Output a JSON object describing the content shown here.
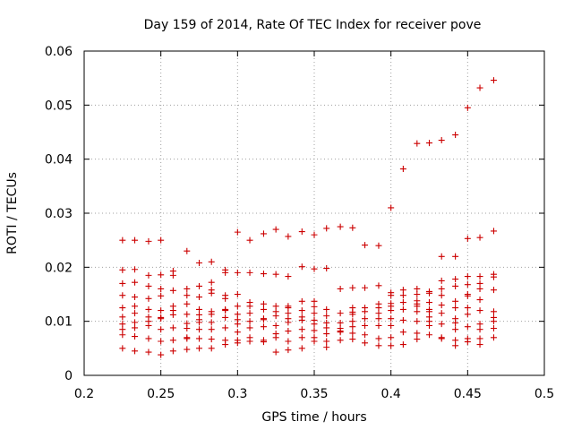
{
  "chart_data": {
    "type": "scatter",
    "title": "Day 159 of 2014, Rate Of TEC Index for receiver pove",
    "xlabel": "GPS time / hours",
    "ylabel": "ROTI / TECUs",
    "xlim": [
      0.2,
      0.5
    ],
    "ylim": [
      0,
      0.06
    ],
    "xticks": [
      0.2,
      0.25,
      0.3,
      0.35,
      0.4,
      0.45,
      0.5
    ],
    "xtick_labels": [
      "0.2",
      "0.25",
      "0.3",
      "0.35",
      "0.4",
      "0.45",
      "0.5"
    ],
    "yticks": [
      0,
      0.01,
      0.02,
      0.03,
      0.04,
      0.05,
      0.06
    ],
    "ytick_labels": [
      "0",
      "0.01",
      "0.02",
      "0.03",
      "0.04",
      "0.05",
      "0.06"
    ],
    "grid": true,
    "marker": "plus",
    "marker_color": "#cc0000",
    "series": [
      {
        "name": "ROTI",
        "points": [
          [
            0.225,
            0.025
          ],
          [
            0.225,
            0.0195
          ],
          [
            0.225,
            0.017
          ],
          [
            0.225,
            0.0148
          ],
          [
            0.225,
            0.0125
          ],
          [
            0.225,
            0.0108
          ],
          [
            0.225,
            0.0095
          ],
          [
            0.225,
            0.0085
          ],
          [
            0.225,
            0.0075
          ],
          [
            0.225,
            0.005
          ],
          [
            0.233,
            0.025
          ],
          [
            0.233,
            0.0196
          ],
          [
            0.233,
            0.0172
          ],
          [
            0.233,
            0.0145
          ],
          [
            0.233,
            0.0128
          ],
          [
            0.233,
            0.0115
          ],
          [
            0.233,
            0.0098
          ],
          [
            0.233,
            0.0088
          ],
          [
            0.233,
            0.0072
          ],
          [
            0.233,
            0.0045
          ],
          [
            0.242,
            0.0248
          ],
          [
            0.242,
            0.0185
          ],
          [
            0.242,
            0.0165
          ],
          [
            0.242,
            0.0142
          ],
          [
            0.242,
            0.0122
          ],
          [
            0.242,
            0.0108
          ],
          [
            0.242,
            0.01
          ],
          [
            0.242,
            0.0092
          ],
          [
            0.242,
            0.0068
          ],
          [
            0.242,
            0.0043
          ],
          [
            0.25,
            0.025
          ],
          [
            0.25,
            0.0186
          ],
          [
            0.25,
            0.016
          ],
          [
            0.25,
            0.0147
          ],
          [
            0.25,
            0.012
          ],
          [
            0.25,
            0.0107
          ],
          [
            0.25,
            0.0105
          ],
          [
            0.25,
            0.0085
          ],
          [
            0.25,
            0.0063
          ],
          [
            0.25,
            0.0038
          ],
          [
            0.258,
            0.0193
          ],
          [
            0.258,
            0.0185
          ],
          [
            0.258,
            0.0157
          ],
          [
            0.258,
            0.0128
          ],
          [
            0.258,
            0.012
          ],
          [
            0.258,
            0.0112
          ],
          [
            0.258,
            0.0088
          ],
          [
            0.258,
            0.0065
          ],
          [
            0.258,
            0.0045
          ],
          [
            0.267,
            0.023
          ],
          [
            0.267,
            0.016
          ],
          [
            0.267,
            0.0148
          ],
          [
            0.267,
            0.0132
          ],
          [
            0.267,
            0.0113
          ],
          [
            0.267,
            0.0096
          ],
          [
            0.267,
            0.0087
          ],
          [
            0.267,
            0.007
          ],
          [
            0.267,
            0.0068
          ],
          [
            0.267,
            0.0048
          ],
          [
            0.275,
            0.0208
          ],
          [
            0.275,
            0.0165
          ],
          [
            0.275,
            0.0145
          ],
          [
            0.275,
            0.0122
          ],
          [
            0.275,
            0.0112
          ],
          [
            0.275,
            0.0103
          ],
          [
            0.275,
            0.0098
          ],
          [
            0.275,
            0.0085
          ],
          [
            0.275,
            0.0068
          ],
          [
            0.275,
            0.005
          ],
          [
            0.283,
            0.021
          ],
          [
            0.283,
            0.0172
          ],
          [
            0.283,
            0.0158
          ],
          [
            0.283,
            0.0152
          ],
          [
            0.283,
            0.0118
          ],
          [
            0.283,
            0.0113
          ],
          [
            0.283,
            0.0098
          ],
          [
            0.283,
            0.0085
          ],
          [
            0.283,
            0.0067
          ],
          [
            0.283,
            0.005
          ],
          [
            0.292,
            0.0195
          ],
          [
            0.292,
            0.019
          ],
          [
            0.292,
            0.0148
          ],
          [
            0.292,
            0.0142
          ],
          [
            0.292,
            0.0122
          ],
          [
            0.292,
            0.012
          ],
          [
            0.292,
            0.0107
          ],
          [
            0.292,
            0.0088
          ],
          [
            0.292,
            0.0065
          ],
          [
            0.292,
            0.0057
          ],
          [
            0.3,
            0.0265
          ],
          [
            0.3,
            0.019
          ],
          [
            0.3,
            0.015
          ],
          [
            0.3,
            0.0128
          ],
          [
            0.3,
            0.0113
          ],
          [
            0.3,
            0.0103
          ],
          [
            0.3,
            0.0095
          ],
          [
            0.3,
            0.008
          ],
          [
            0.3,
            0.0065
          ],
          [
            0.3,
            0.006
          ],
          [
            0.308,
            0.025
          ],
          [
            0.308,
            0.019
          ],
          [
            0.308,
            0.0135
          ],
          [
            0.308,
            0.0128
          ],
          [
            0.308,
            0.0115
          ],
          [
            0.308,
            0.01
          ],
          [
            0.308,
            0.0088
          ],
          [
            0.308,
            0.007
          ],
          [
            0.308,
            0.0063
          ],
          [
            0.317,
            0.0262
          ],
          [
            0.317,
            0.0188
          ],
          [
            0.317,
            0.0132
          ],
          [
            0.317,
            0.0122
          ],
          [
            0.317,
            0.0105
          ],
          [
            0.317,
            0.0103
          ],
          [
            0.317,
            0.009
          ],
          [
            0.317,
            0.0065
          ],
          [
            0.317,
            0.0062
          ],
          [
            0.325,
            0.027
          ],
          [
            0.325,
            0.0187
          ],
          [
            0.325,
            0.0128
          ],
          [
            0.325,
            0.0118
          ],
          [
            0.325,
            0.011
          ],
          [
            0.325,
            0.0092
          ],
          [
            0.325,
            0.0077
          ],
          [
            0.325,
            0.007
          ],
          [
            0.325,
            0.0043
          ],
          [
            0.333,
            0.0257
          ],
          [
            0.333,
            0.0183
          ],
          [
            0.333,
            0.0128
          ],
          [
            0.333,
            0.0125
          ],
          [
            0.333,
            0.0115
          ],
          [
            0.333,
            0.0105
          ],
          [
            0.333,
            0.0098
          ],
          [
            0.333,
            0.0082
          ],
          [
            0.333,
            0.0063
          ],
          [
            0.333,
            0.0047
          ],
          [
            0.342,
            0.0266
          ],
          [
            0.342,
            0.0201
          ],
          [
            0.342,
            0.0137
          ],
          [
            0.342,
            0.012
          ],
          [
            0.342,
            0.0108
          ],
          [
            0.342,
            0.0102
          ],
          [
            0.342,
            0.0085
          ],
          [
            0.342,
            0.007
          ],
          [
            0.342,
            0.005
          ],
          [
            0.35,
            0.026
          ],
          [
            0.35,
            0.0197
          ],
          [
            0.35,
            0.0137
          ],
          [
            0.35,
            0.0127
          ],
          [
            0.35,
            0.0115
          ],
          [
            0.35,
            0.0102
          ],
          [
            0.35,
            0.0095
          ],
          [
            0.35,
            0.0083
          ],
          [
            0.35,
            0.007
          ],
          [
            0.35,
            0.0063
          ],
          [
            0.358,
            0.0272
          ],
          [
            0.358,
            0.0198
          ],
          [
            0.358,
            0.0122
          ],
          [
            0.358,
            0.011
          ],
          [
            0.358,
            0.0097
          ],
          [
            0.358,
            0.0088
          ],
          [
            0.358,
            0.0077
          ],
          [
            0.358,
            0.0063
          ],
          [
            0.358,
            0.0052
          ],
          [
            0.367,
            0.0275
          ],
          [
            0.367,
            0.016
          ],
          [
            0.367,
            0.0115
          ],
          [
            0.367,
            0.0097
          ],
          [
            0.367,
            0.0087
          ],
          [
            0.367,
            0.0082
          ],
          [
            0.367,
            0.008
          ],
          [
            0.367,
            0.0065
          ],
          [
            0.375,
            0.0273
          ],
          [
            0.375,
            0.0162
          ],
          [
            0.375,
            0.0125
          ],
          [
            0.375,
            0.0117
          ],
          [
            0.375,
            0.0113
          ],
          [
            0.375,
            0.01
          ],
          [
            0.375,
            0.009
          ],
          [
            0.375,
            0.0078
          ],
          [
            0.375,
            0.0067
          ],
          [
            0.383,
            0.0241
          ],
          [
            0.383,
            0.0162
          ],
          [
            0.383,
            0.0125
          ],
          [
            0.383,
            0.0118
          ],
          [
            0.383,
            0.0105
          ],
          [
            0.383,
            0.0092
          ],
          [
            0.383,
            0.0075
          ],
          [
            0.383,
            0.006
          ],
          [
            0.392,
            0.024
          ],
          [
            0.392,
            0.0166
          ],
          [
            0.392,
            0.0132
          ],
          [
            0.392,
            0.0125
          ],
          [
            0.392,
            0.0115
          ],
          [
            0.392,
            0.0105
          ],
          [
            0.392,
            0.0092
          ],
          [
            0.392,
            0.0068
          ],
          [
            0.392,
            0.0055
          ],
          [
            0.4,
            0.031
          ],
          [
            0.4,
            0.0153
          ],
          [
            0.4,
            0.0148
          ],
          [
            0.4,
            0.0133
          ],
          [
            0.4,
            0.0128
          ],
          [
            0.4,
            0.012
          ],
          [
            0.4,
            0.0105
          ],
          [
            0.4,
            0.0092
          ],
          [
            0.4,
            0.007
          ],
          [
            0.4,
            0.0055
          ],
          [
            0.408,
            0.0382
          ],
          [
            0.408,
            0.0158
          ],
          [
            0.408,
            0.0148
          ],
          [
            0.408,
            0.0135
          ],
          [
            0.408,
            0.0122
          ],
          [
            0.408,
            0.0102
          ],
          [
            0.408,
            0.008
          ],
          [
            0.408,
            0.0057
          ],
          [
            0.417,
            0.0429
          ],
          [
            0.417,
            0.016
          ],
          [
            0.417,
            0.015
          ],
          [
            0.417,
            0.0138
          ],
          [
            0.417,
            0.0132
          ],
          [
            0.417,
            0.0128
          ],
          [
            0.417,
            0.0118
          ],
          [
            0.417,
            0.01
          ],
          [
            0.417,
            0.0078
          ],
          [
            0.417,
            0.0067
          ],
          [
            0.425,
            0.043
          ],
          [
            0.425,
            0.0155
          ],
          [
            0.425,
            0.0152
          ],
          [
            0.425,
            0.0135
          ],
          [
            0.425,
            0.0122
          ],
          [
            0.425,
            0.0118
          ],
          [
            0.425,
            0.0108
          ],
          [
            0.425,
            0.01
          ],
          [
            0.425,
            0.0092
          ],
          [
            0.425,
            0.0075
          ],
          [
            0.433,
            0.0435
          ],
          [
            0.433,
            0.022
          ],
          [
            0.433,
            0.0175
          ],
          [
            0.433,
            0.016
          ],
          [
            0.433,
            0.0148
          ],
          [
            0.433,
            0.013
          ],
          [
            0.433,
            0.0115
          ],
          [
            0.433,
            0.0095
          ],
          [
            0.433,
            0.007
          ],
          [
            0.433,
            0.0068
          ],
          [
            0.442,
            0.0445
          ],
          [
            0.442,
            0.022
          ],
          [
            0.442,
            0.0178
          ],
          [
            0.442,
            0.0165
          ],
          [
            0.442,
            0.0137
          ],
          [
            0.442,
            0.0125
          ],
          [
            0.442,
            0.0105
          ],
          [
            0.442,
            0.0097
          ],
          [
            0.442,
            0.0085
          ],
          [
            0.442,
            0.0065
          ],
          [
            0.442,
            0.0055
          ],
          [
            0.45,
            0.0495
          ],
          [
            0.45,
            0.0253
          ],
          [
            0.45,
            0.0183
          ],
          [
            0.45,
            0.0168
          ],
          [
            0.45,
            0.015
          ],
          [
            0.45,
            0.0147
          ],
          [
            0.45,
            0.0125
          ],
          [
            0.45,
            0.0113
          ],
          [
            0.45,
            0.009
          ],
          [
            0.45,
            0.0068
          ],
          [
            0.45,
            0.0062
          ],
          [
            0.458,
            0.0532
          ],
          [
            0.458,
            0.0255
          ],
          [
            0.458,
            0.0183
          ],
          [
            0.458,
            0.017
          ],
          [
            0.458,
            0.016
          ],
          [
            0.458,
            0.014
          ],
          [
            0.458,
            0.012
          ],
          [
            0.458,
            0.0095
          ],
          [
            0.458,
            0.0085
          ],
          [
            0.458,
            0.0068
          ],
          [
            0.458,
            0.0057
          ],
          [
            0.467,
            0.0546
          ],
          [
            0.467,
            0.0267
          ],
          [
            0.467,
            0.0187
          ],
          [
            0.467,
            0.0182
          ],
          [
            0.467,
            0.0158
          ],
          [
            0.467,
            0.0118
          ],
          [
            0.467,
            0.0107
          ],
          [
            0.467,
            0.01
          ],
          [
            0.467,
            0.0087
          ],
          [
            0.467,
            0.007
          ]
        ]
      }
    ]
  }
}
